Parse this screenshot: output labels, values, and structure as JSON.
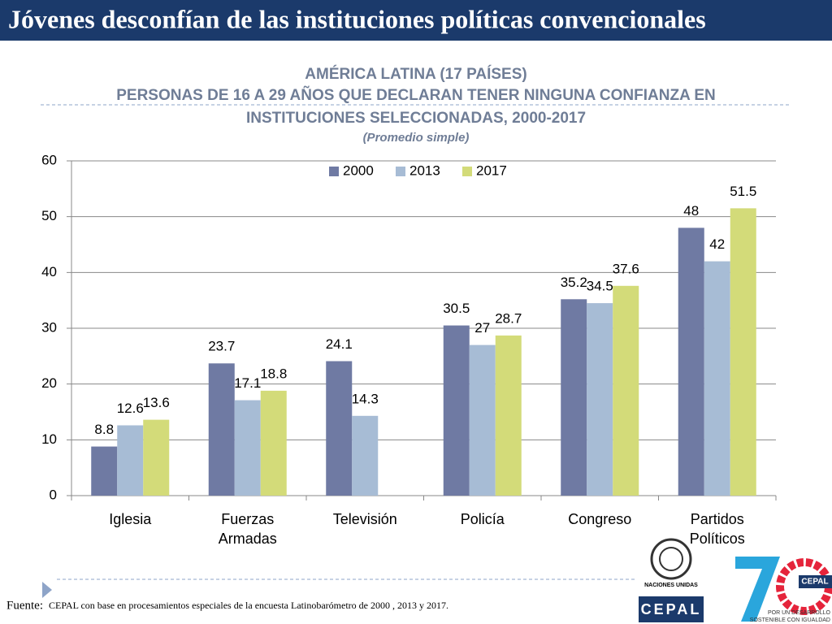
{
  "header": {
    "title": "Jóvenes desconfían de las instituciones políticas convencionales"
  },
  "chart_data": {
    "type": "bar",
    "title": "AMÉRICA LATINA (17 PAÍSES)",
    "subtitle": [
      "PERSONAS DE 16 A 29 AÑOS QUE DECLARAN TENER NINGUNA CONFIANZA EN",
      "INSTITUCIONES SELECCIONADAS, 2000-2017"
    ],
    "note": "(Promedio simple)",
    "categories": [
      "Iglesia",
      "Fuerzas Armadas",
      "Televisión",
      "Policía",
      "Congreso",
      "Partidos Políticos"
    ],
    "series": [
      {
        "name": "2000",
        "color": "#6f7aa3",
        "values": [
          8.8,
          23.7,
          24.1,
          30.5,
          35.2,
          48
        ]
      },
      {
        "name": "2013",
        "color": "#a7bcd5",
        "values": [
          12.6,
          17.1,
          14.3,
          27,
          34.5,
          42
        ]
      },
      {
        "name": "2017",
        "color": "#d3db79",
        "values": [
          13.6,
          18.8,
          null,
          28.7,
          37.6,
          51.5
        ]
      }
    ],
    "ylim": [
      0,
      60
    ],
    "yticks": [
      0,
      10,
      20,
      30,
      40,
      50,
      60
    ],
    "grid": true,
    "legend": "top"
  },
  "footer": {
    "source_label": "Fuente:",
    "source": "CEPAL con base en procesamientos especiales de la encuesta Latinobarómetro de 2000 , 2013 y 2017."
  },
  "logos": {
    "un": "NACIONES UNIDAS",
    "cepal": "CEPAL",
    "cepal_small": "CEPAL",
    "slogan": [
      "POR UN DESARROLLO",
      "SOSTENIBLE CON IGUALDAD"
    ]
  }
}
